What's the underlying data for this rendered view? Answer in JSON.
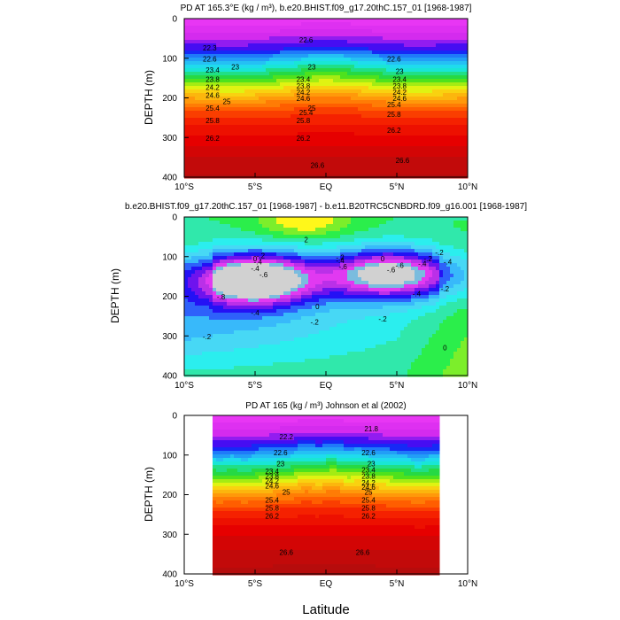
{
  "chart_data": [
    {
      "type": "filled-contour",
      "title": "PD AT 165.3°E (kg / m³), b.e20.BHIST.f09_g17.20thC.157_01 [1968-1987]",
      "ylabel": "DEPTH (m)",
      "xlim": [
        -10,
        10
      ],
      "ylim": [
        400,
        0
      ],
      "x_tick_labels": [
        "10°S",
        "5°S",
        "EQ",
        "5°N",
        "10°N"
      ],
      "y_tick_labels": [
        "0",
        "100",
        "200",
        "300",
        "400"
      ],
      "contour_labels": [
        "22.3",
        "22.6",
        "22.6",
        "22.6",
        "23",
        "23",
        "23",
        "23.4",
        "23.4",
        "23.4",
        "23.8",
        "23.8",
        "23.8",
        "24.2",
        "24.2",
        "24.2",
        "24.6",
        "24.6",
        "24.6",
        "25",
        "25",
        "25.4",
        "25.4",
        "25.4",
        "25.8",
        "25.8",
        "25.8",
        "26.2",
        "26.2",
        "26.2",
        "26.6",
        "26.6"
      ],
      "interval": 0.2,
      "profile": {
        "depth": [
          0,
          50,
          80,
          100,
          120,
          150,
          180,
          210,
          240,
          280,
          320,
          360,
          400
        ],
        "density": [
          21.3,
          21.9,
          22.3,
          22.8,
          23.3,
          23.9,
          24.5,
          25.1,
          25.6,
          26.0,
          26.3,
          26.55,
          26.75
        ]
      },
      "colormap": "rainbow, magenta (light) to dark red (dense)"
    },
    {
      "type": "filled-contour",
      "title": "b.e20.BHIST.f09_g17.20thC.157_01 [1968-1987] - b.e11.B20TRC5CNBDRD.f09_g16.001 [1968-1987]",
      "ylabel": "DEPTH (m)",
      "xlim": [
        -10,
        10
      ],
      "ylim": [
        400,
        0
      ],
      "x_tick_labels": [
        "10°S",
        "5°S",
        "EQ",
        "5°N",
        "10°N"
      ],
      "y_tick_labels": [
        "0",
        "100",
        "200",
        "300",
        "400"
      ],
      "contour_labels": [
        "2",
        "0",
        "0",
        "-.2",
        "-.2",
        "-.2",
        "-.2",
        "-.4",
        "-.4",
        "-.4",
        "-.4",
        "-.4",
        "-.6",
        "-.6",
        "-.6",
        "-.6",
        "-.8",
        "-.4",
        "-.2",
        "-.2",
        "0",
        "-.2",
        "-.4",
        "-.2",
        "0"
      ],
      "interval": 0.1,
      "features": {
        "positive_max_at": {
          "lat": -1.5,
          "depth": 10,
          "value": 0.3
        },
        "negative_min_south": {
          "lat": -5.0,
          "depth": 160,
          "value": -0.9
        },
        "negative_min_north": {
          "lat": 4.5,
          "depth": 140,
          "value": -0.7
        }
      },
      "colormap": "rainbow, magenta (negative) to yellow (positive)"
    },
    {
      "type": "filled-contour",
      "title": "PD AT 165 (kg / m³) Johnson et al (2002)",
      "ylabel": "DEPTH (m)",
      "xlabel": "Latitude",
      "xlim": [
        -10,
        10
      ],
      "ylim": [
        400,
        0
      ],
      "data_xlim": [
        -8,
        8
      ],
      "x_tick_labels": [
        "10°S",
        "5°S",
        "EQ",
        "5°N",
        "10°N"
      ],
      "y_tick_labels": [
        "0",
        "100",
        "200",
        "300",
        "400"
      ],
      "contour_labels": [
        "21.8",
        "22.2",
        "22.6",
        "22.6",
        "23",
        "23",
        "23.4",
        "23.4",
        "23.8",
        "23.8",
        "24.2",
        "24.2",
        "24.6",
        "24.6",
        "25",
        "25",
        "25.4",
        "25.4",
        "25.8",
        "25.8",
        "26.2",
        "26.2",
        "26.6",
        "26.6"
      ],
      "interval": 0.2,
      "profile": {
        "depth": [
          0,
          50,
          80,
          100,
          120,
          150,
          180,
          210,
          240,
          280,
          320,
          360,
          400
        ],
        "density": [
          21.3,
          21.9,
          22.4,
          22.9,
          23.4,
          24.0,
          24.6,
          25.2,
          25.7,
          26.1,
          26.4,
          26.6,
          26.8
        ]
      },
      "colormap": "rainbow, magenta (light) to dark red (dense)"
    }
  ]
}
